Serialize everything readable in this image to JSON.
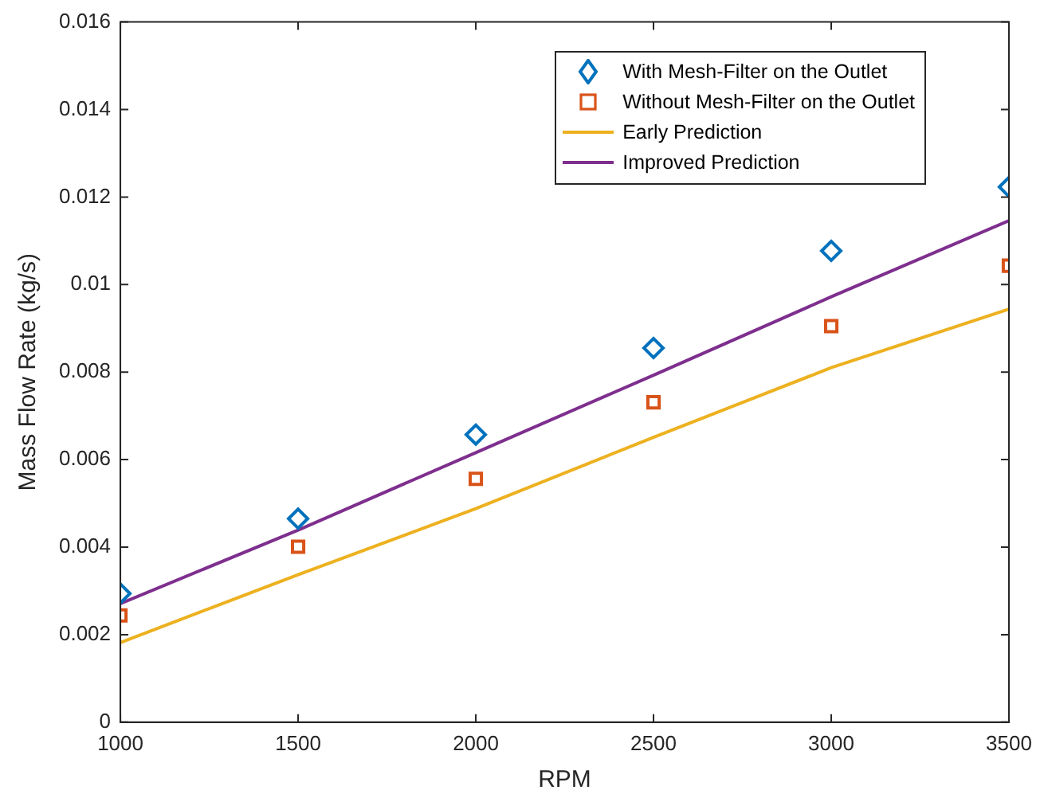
{
  "chart_data": {
    "type": "scatter",
    "xlabel": "RPM",
    "ylabel": "Mass Flow Rate (kg/s)",
    "x": [
      1000,
      1500,
      2000,
      2500,
      3000,
      3500
    ],
    "series": [
      {
        "name": "With Mesh-Filter on the Outlet",
        "marker": "diamond",
        "color": "#0072bd",
        "values": [
          0.00294,
          0.00465,
          0.00657,
          0.00855,
          0.01077,
          0.01223
        ]
      },
      {
        "name": "Without Mesh-Filter on the Outlet",
        "marker": "square",
        "color": "#d95319",
        "values": [
          0.00244,
          0.00401,
          0.00556,
          0.00731,
          0.00905,
          0.01043
        ]
      },
      {
        "name": "Early Prediction",
        "type": "line",
        "marker": "none",
        "color": "#edb120",
        "values": [
          0.00182,
          0.00337,
          0.00488,
          0.00651,
          0.0081,
          0.00944
        ]
      },
      {
        "name": "Improved Prediction",
        "type": "line",
        "marker": "none",
        "color": "#7e2f8e",
        "values": [
          0.00271,
          0.00439,
          0.00616,
          0.00793,
          0.00972,
          0.01146
        ]
      }
    ],
    "xlim": [
      1000,
      3500
    ],
    "xticks": [
      1000,
      1500,
      2000,
      2500,
      3000,
      3500
    ],
    "ylim": [
      0,
      0.016
    ],
    "yticks": [
      0,
      0.002,
      0.004,
      0.006,
      0.008,
      0.01,
      0.012,
      0.014,
      0.016
    ],
    "grid": false,
    "legend": "top right"
  }
}
